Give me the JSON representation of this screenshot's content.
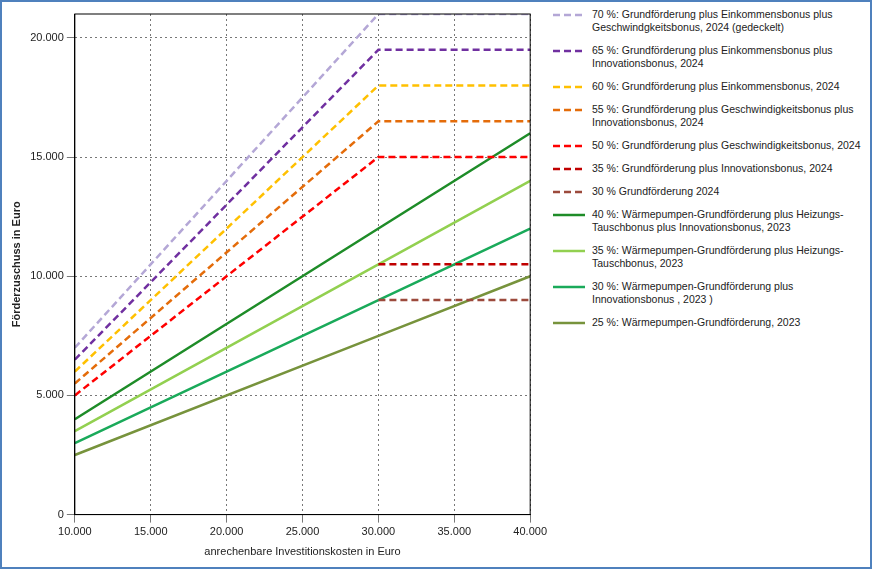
{
  "chart_data": {
    "type": "line",
    "x_label": "anrechenbare Investitionskosten in Euro",
    "y_label": "Förderzuschuss in Euro",
    "x": [
      10000,
      30000,
      40000
    ],
    "series": [
      {
        "name": "70 %: Grundförderung plus Einkommensbonus plus Geschwindgkeitsbonus, 2024 (gedeckelt)",
        "color": "#b4a7d6",
        "line_style": "dashed",
        "values": [
          7000,
          21000,
          21000
        ]
      },
      {
        "name": "65 %: Grundförderung plus Einkommensbonus plus Innovationsbonus, 2024",
        "color": "#7030a0",
        "line_style": "dashed",
        "values": [
          6500,
          19500,
          19500
        ]
      },
      {
        "name": "60 %: Grundförderung plus Einkommensbonus, 2024",
        "color": "#ffc000",
        "line_style": "dashed",
        "values": [
          6000,
          18000,
          18000
        ]
      },
      {
        "name": "55 %: Grundförderung plus Geschwindigkeitsbonus plus Innovationsbonus, 2024",
        "color": "#e46c0a",
        "line_style": "dashed",
        "values": [
          5500,
          16500,
          16500
        ]
      },
      {
        "name": "50 %: Grundförderung plus Geschwindigkeitsbonus, 2024",
        "color": "#ff0000",
        "line_style": "dashed",
        "values": [
          5000,
          15000,
          15000
        ]
      },
      {
        "name": "35 %: Grundförderung plus Innovationsbonus, 2024",
        "color": "#c00000",
        "line_style": "dashed",
        "values": [
          null,
          10500,
          10500
        ]
      },
      {
        "name": "30 % Grundförderung 2024",
        "color": "#9c4a3c",
        "line_style": "dashed",
        "values": [
          null,
          9000,
          9000
        ]
      },
      {
        "name": "40 %: Wärmepumpen-Grundförderung plus Heizungs-Tauschbonus plus Innovationsbonus, 2023",
        "color": "#1e8c28",
        "line_style": "solid",
        "values": [
          4000,
          12000,
          16000
        ]
      },
      {
        "name": "35 %: Wärmepumpen-Grundförderung plus Heizungs-Tauschbonus, 2023",
        "color": "#92d050",
        "line_style": "solid",
        "values": [
          3500,
          10500,
          14000
        ]
      },
      {
        "name": "30 %: Wärmepumpen-Grundförderung plus Innovationsbonus , 2023 )",
        "color": "#1aaa5a",
        "line_style": "solid",
        "values": [
          3000,
          9000,
          12000
        ]
      },
      {
        "name": "25 %: Wärmepumpen-Grundförderung, 2023",
        "color": "#77933c",
        "line_style": "solid",
        "values": [
          2500,
          7500,
          10000
        ]
      }
    ],
    "xlim": [
      10000,
      40000
    ],
    "xticks": [
      {
        "value": 10000,
        "label": "10.000"
      },
      {
        "value": 15000,
        "label": "15.000"
      },
      {
        "value": 20000,
        "label": "20.000"
      },
      {
        "value": 25000,
        "label": "25.000"
      },
      {
        "value": 30000,
        "label": "30.000"
      },
      {
        "value": 35000,
        "label": "35.000"
      },
      {
        "value": 40000,
        "label": "40.000"
      }
    ],
    "ylim": [
      0,
      21000
    ],
    "yticks": [
      0,
      {
        "value": 5000,
        "label": "5.000"
      },
      {
        "value": 10000,
        "label": "10.000"
      },
      {
        "value": 15000,
        "label": "15.000"
      },
      {
        "value": 20000,
        "label": "20.000"
      }
    ],
    "grid": true,
    "legend": "right"
  }
}
